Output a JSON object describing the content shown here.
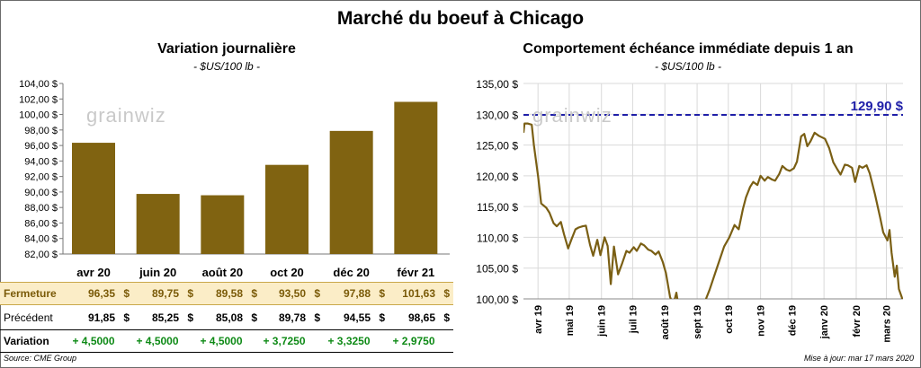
{
  "title": "Marché du boeuf à Chicago",
  "watermark": "grainwiz",
  "colors": {
    "bar": "#806311",
    "line": "#7a5f14",
    "ref": "#1f1fa8",
    "highlight": "#fbedc7",
    "positive": "#0e8a16"
  },
  "left_chart": {
    "subtitle": "Variation journalière",
    "unit": "- $US/100 lb -"
  },
  "right_chart": {
    "subtitle": "Comportement échéance immédiate depuis 1 an",
    "unit": "- $US/100 lb -",
    "ref_label": "129,90 $"
  },
  "table": {
    "rows": [
      {
        "label": "Fermeture",
        "values": [
          "96,35",
          "89,75",
          "89,58",
          "93,50",
          "97,88",
          "101,63"
        ],
        "unit": "$"
      },
      {
        "label": "Précédent",
        "values": [
          "91,85",
          "85,25",
          "85,08",
          "89,78",
          "94,55",
          "98,65"
        ],
        "unit": "$"
      },
      {
        "label": "Variation",
        "values": [
          "+ 4,5000",
          "+ 4,5000",
          "+ 4,5000",
          "+ 3,7250",
          "+ 3,3250",
          "+ 2,9750"
        ]
      }
    ]
  },
  "footer": {
    "source": "Source: CME Group",
    "updated": "Mise à jour: mar 17 mars 2020"
  },
  "chart_data": [
    {
      "type": "bar",
      "title": "Variation journalière",
      "ylabel": "$US/100 lb",
      "categories": [
        "avr 20",
        "juin 20",
        "août 20",
        "oct 20",
        "déc 20",
        "févr 21"
      ],
      "values": [
        96.35,
        89.75,
        89.58,
        93.5,
        97.88,
        101.63
      ],
      "ylim": [
        82,
        104
      ],
      "yticks": [
        "82,00 $",
        "84,00 $",
        "86,00 $",
        "88,00 $",
        "90,00 $",
        "92,00 $",
        "94,00 $",
        "96,00 $",
        "98,00 $",
        "100,00 $",
        "102,00 $",
        "104,00 $"
      ],
      "grid": false
    },
    {
      "type": "line",
      "title": "Comportement échéance immédiate depuis 1 an",
      "ylabel": "$US/100 lb",
      "ylim": [
        100,
        135
      ],
      "yticks": [
        "100,00 $",
        "105,00 $",
        "110,00 $",
        "115,00 $",
        "120,00 $",
        "125,00 $",
        "130,00 $",
        "135,00 $"
      ],
      "xticks": [
        "avr 19",
        "mai 19",
        "juin 19",
        "juil 19",
        "août 19",
        "sept 19",
        "oct 19",
        "nov 19",
        "déc 19",
        "janv 20",
        "févr 20",
        "mars 20"
      ],
      "x_range": [
        "2019-03-18",
        "2020-03-17"
      ],
      "reference_line": {
        "value": 129.9,
        "label": "129,90 $"
      },
      "grid": true,
      "series": [
        {
          "points": [
            [
              "2019-03-18",
              127.0
            ],
            [
              "2019-03-19",
              128.5
            ],
            [
              "2019-03-22",
              128.5
            ],
            [
              "2019-03-26",
              128.3
            ],
            [
              "2019-03-28",
              125.0
            ],
            [
              "2019-04-01",
              120.0
            ],
            [
              "2019-04-04",
              115.5
            ],
            [
              "2019-04-09",
              114.8
            ],
            [
              "2019-04-12",
              114.0
            ],
            [
              "2019-04-16",
              112.3
            ],
            [
              "2019-04-19",
              111.8
            ],
            [
              "2019-04-23",
              112.5
            ],
            [
              "2019-04-26",
              110.5
            ],
            [
              "2019-04-30",
              108.2
            ],
            [
              "2019-05-03",
              109.6
            ],
            [
              "2019-05-07",
              111.3
            ],
            [
              "2019-05-10",
              111.6
            ],
            [
              "2019-05-14",
              111.8
            ],
            [
              "2019-05-17",
              111.9
            ],
            [
              "2019-05-21",
              108.8
            ],
            [
              "2019-05-24",
              107.0
            ],
            [
              "2019-05-28",
              109.6
            ],
            [
              "2019-05-31",
              107.1
            ],
            [
              "2019-06-04",
              110.0
            ],
            [
              "2019-06-07",
              108.6
            ],
            [
              "2019-06-10",
              102.4
            ],
            [
              "2019-06-13",
              108.5
            ],
            [
              "2019-06-17",
              104.0
            ],
            [
              "2019-06-21",
              105.8
            ],
            [
              "2019-06-25",
              107.8
            ],
            [
              "2019-06-28",
              107.5
            ],
            [
              "2019-07-02",
              108.4
            ],
            [
              "2019-07-05",
              107.8
            ],
            [
              "2019-07-09",
              109.0
            ],
            [
              "2019-07-12",
              108.7
            ],
            [
              "2019-07-16",
              108.0
            ],
            [
              "2019-07-19",
              107.8
            ],
            [
              "2019-07-23",
              107.2
            ],
            [
              "2019-07-26",
              107.7
            ],
            [
              "2019-07-30",
              106.0
            ],
            [
              "2019-08-02",
              104.2
            ],
            [
              "2019-08-06",
              100.3
            ],
            [
              "2019-08-09",
              99.0
            ],
            [
              "2019-08-12",
              101.0
            ],
            [
              "2019-08-15",
              98.0
            ],
            [
              "2019-09-05",
              98.0
            ],
            [
              "2019-09-10",
              100.2
            ],
            [
              "2019-09-13",
              101.5
            ],
            [
              "2019-09-18",
              104.0
            ],
            [
              "2019-09-23",
              106.5
            ],
            [
              "2019-09-27",
              108.5
            ],
            [
              "2019-10-02",
              110.0
            ],
            [
              "2019-10-07",
              112.0
            ],
            [
              "2019-10-11",
              111.3
            ],
            [
              "2019-10-15",
              114.6
            ],
            [
              "2019-10-18",
              116.5
            ],
            [
              "2019-10-22",
              118.2
            ],
            [
              "2019-10-25",
              119.0
            ],
            [
              "2019-10-29",
              118.5
            ],
            [
              "2019-11-01",
              120.0
            ],
            [
              "2019-11-05",
              119.2
            ],
            [
              "2019-11-08",
              119.8
            ],
            [
              "2019-11-12",
              119.4
            ],
            [
              "2019-11-15",
              119.2
            ],
            [
              "2019-11-19",
              120.3
            ],
            [
              "2019-11-22",
              121.6
            ],
            [
              "2019-11-26",
              121.0
            ],
            [
              "2019-11-29",
              120.8
            ],
            [
              "2019-12-03",
              121.2
            ],
            [
              "2019-12-06",
              122.3
            ],
            [
              "2019-12-10",
              126.4
            ],
            [
              "2019-12-13",
              126.8
            ],
            [
              "2019-12-16",
              124.8
            ],
            [
              "2019-12-19",
              125.6
            ],
            [
              "2019-12-23",
              127.0
            ],
            [
              "2019-12-27",
              126.5
            ],
            [
              "2020-01-02",
              126.0
            ],
            [
              "2020-01-06",
              124.5
            ],
            [
              "2020-01-10",
              122.2
            ],
            [
              "2020-01-14",
              121.0
            ],
            [
              "2020-01-17",
              120.2
            ],
            [
              "2020-01-21",
              121.8
            ],
            [
              "2020-01-24",
              121.7
            ],
            [
              "2020-01-28",
              121.3
            ],
            [
              "2020-01-31",
              119.0
            ],
            [
              "2020-02-04",
              121.6
            ],
            [
              "2020-02-07",
              121.3
            ],
            [
              "2020-02-11",
              121.7
            ],
            [
              "2020-02-14",
              120.4
            ],
            [
              "2020-02-19",
              117.0
            ],
            [
              "2020-02-24",
              113.2
            ],
            [
              "2020-02-27",
              110.8
            ],
            [
              "2020-03-02",
              109.5
            ],
            [
              "2020-03-04",
              111.2
            ],
            [
              "2020-03-06",
              107.5
            ],
            [
              "2020-03-09",
              103.6
            ],
            [
              "2020-03-11",
              105.4
            ],
            [
              "2020-03-13",
              101.6
            ],
            [
              "2020-03-16",
              100.2
            ],
            [
              "2020-03-17",
              99.0
            ]
          ]
        }
      ]
    }
  ]
}
